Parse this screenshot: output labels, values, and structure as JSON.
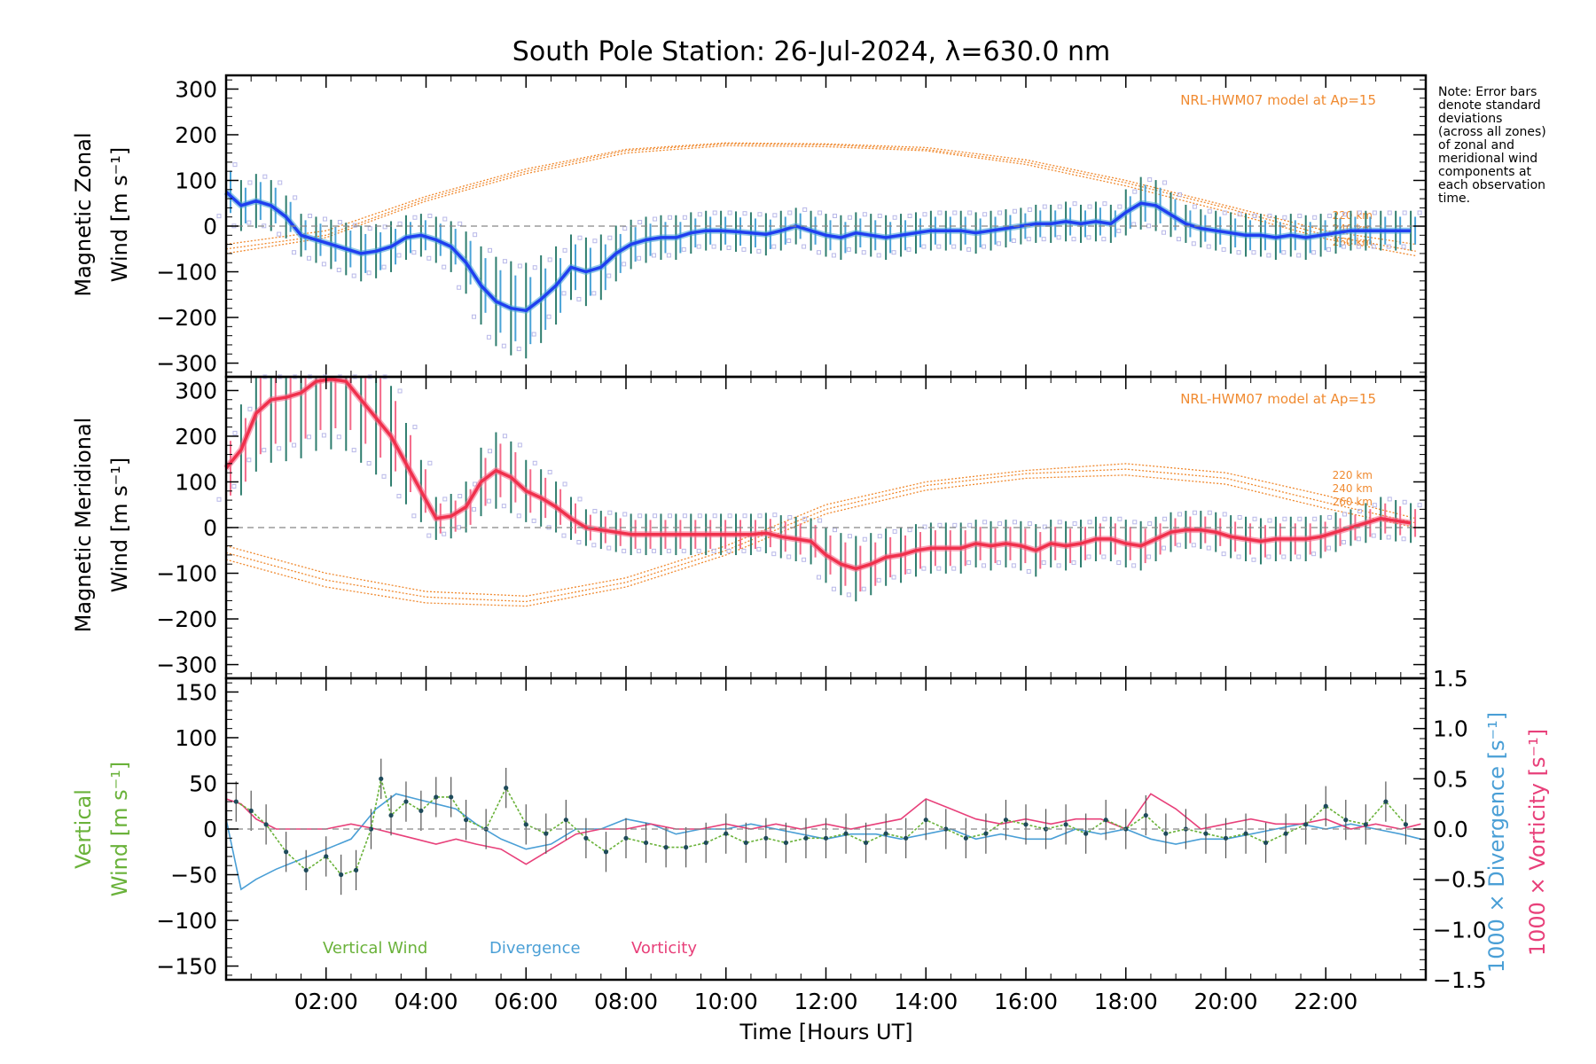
{
  "title": "South Pole Station: 26-Jul-2024, λ=630.0 nm",
  "note_lines": [
    "Note: Error bars",
    "denote standard",
    "deviations",
    "(across all zones)",
    "of zonal and",
    "meridional wind",
    "components at",
    "each observation",
    "time."
  ],
  "xaxis": {
    "label": "Time [Hours UT]",
    "range": [
      0,
      24
    ],
    "tick_values": [
      2,
      4,
      6,
      8,
      10,
      12,
      14,
      16,
      18,
      20,
      22
    ],
    "tick_labels": [
      "02:00",
      "04:00",
      "06:00",
      "08:00",
      "10:00",
      "12:00",
      "14:00",
      "16:00",
      "18:00",
      "20:00",
      "22:00"
    ]
  },
  "colors": {
    "zonal_line": "#1f3ff0",
    "zonal_light": "#4aa3d8",
    "meridional_line": "#f0304c",
    "meridional_light": "#f56a8a",
    "model": "#f08a30",
    "scatter": "#b8b8e8",
    "vertical": "#6ab23a",
    "divergence": "#4a9fd6",
    "vorticity": "#e8407a",
    "errbar": "#2e7d6e"
  },
  "chart_data": [
    {
      "type": "line",
      "panel": "zonal",
      "ylabel_line1": "Magnetic Zonal",
      "ylabel_line2": "Wind [m s⁻¹]",
      "ylim": [
        -330,
        330
      ],
      "ytick_values": [
        -300,
        -200,
        -100,
        0,
        100,
        200,
        300
      ],
      "ytick_labels": [
        "−300",
        "−200",
        "−100",
        "0",
        "100",
        "200",
        "300"
      ],
      "model_label": "NRL-HWM07 model at Ap=15",
      "model_alt_labels": [
        "220 km",
        "240 km",
        "260 km"
      ],
      "x": [
        0,
        0.3,
        0.6,
        0.9,
        1.2,
        1.5,
        1.8,
        2.1,
        2.4,
        2.7,
        3.0,
        3.3,
        3.6,
        3.9,
        4.2,
        4.5,
        4.8,
        5.1,
        5.4,
        5.7,
        6.0,
        6.3,
        6.6,
        6.9,
        7.2,
        7.5,
        7.8,
        8.1,
        8.4,
        8.7,
        9.0,
        9.3,
        9.6,
        9.9,
        10.2,
        10.5,
        10.8,
        11.1,
        11.4,
        11.7,
        12.0,
        12.3,
        12.6,
        12.9,
        13.2,
        13.5,
        13.8,
        14.1,
        14.4,
        14.7,
        15.0,
        15.3,
        15.6,
        15.9,
        16.2,
        16.5,
        16.8,
        17.1,
        17.4,
        17.7,
        18.0,
        18.3,
        18.6,
        18.9,
        19.2,
        19.5,
        19.8,
        20.1,
        20.4,
        20.7,
        21.0,
        21.3,
        21.6,
        21.9,
        22.2,
        22.5,
        22.8,
        23.1,
        23.4,
        23.7
      ],
      "values": [
        75,
        45,
        55,
        45,
        20,
        -20,
        -30,
        -40,
        -50,
        -60,
        -55,
        -45,
        -25,
        -20,
        -30,
        -45,
        -80,
        -130,
        -165,
        -180,
        -185,
        -160,
        -130,
        -90,
        -100,
        -90,
        -60,
        -40,
        -30,
        -25,
        -25,
        -15,
        -10,
        -10,
        -12,
        -15,
        -18,
        -10,
        0,
        -10,
        -20,
        -25,
        -15,
        -20,
        -25,
        -20,
        -15,
        -10,
        -10,
        -10,
        -15,
        -10,
        -5,
        0,
        5,
        5,
        10,
        5,
        10,
        5,
        30,
        50,
        45,
        25,
        5,
        -5,
        -10,
        -15,
        -20,
        -20,
        -25,
        -20,
        -25,
        -20,
        -15,
        -10,
        -10,
        -10,
        -10,
        -10
      ],
      "model_series": [
        {
          "name": "220 km",
          "x": [
            0,
            2,
            4,
            6,
            8,
            10,
            12,
            14,
            16,
            18,
            20,
            22,
            23.8
          ],
          "values": [
            -50,
            -20,
            60,
            120,
            165,
            180,
            178,
            168,
            140,
            95,
            40,
            -20,
            -55
          ]
        },
        {
          "name": "240 km",
          "x": [
            0,
            2,
            4,
            6,
            8,
            10,
            12,
            14,
            16,
            18,
            20,
            22,
            23.8
          ],
          "values": [
            -40,
            -10,
            65,
            125,
            168,
            182,
            180,
            172,
            145,
            100,
            45,
            -10,
            -40
          ]
        },
        {
          "name": "260 km",
          "x": [
            0,
            2,
            4,
            6,
            8,
            10,
            12,
            14,
            16,
            18,
            20,
            22,
            23.8
          ],
          "values": [
            -60,
            -25,
            55,
            115,
            160,
            176,
            174,
            165,
            135,
            88,
            32,
            -28,
            -65
          ]
        }
      ]
    },
    {
      "type": "line",
      "panel": "meridional",
      "ylabel_line1": "Magnetic Meridional",
      "ylabel_line2": "Wind [m s⁻¹]",
      "ylim": [
        -330,
        330
      ],
      "ytick_values": [
        -300,
        -200,
        -100,
        0,
        100,
        200,
        300
      ],
      "ytick_labels": [
        "−300",
        "−200",
        "−100",
        "0",
        "100",
        "200",
        "300"
      ],
      "model_label": "NRL-HWM07 model at Ap=15",
      "model_alt_labels": [
        "220 km",
        "240 km",
        "260 km"
      ],
      "x": [
        0,
        0.3,
        0.6,
        0.9,
        1.2,
        1.5,
        1.8,
        2.1,
        2.4,
        2.7,
        3.0,
        3.3,
        3.6,
        3.9,
        4.2,
        4.5,
        4.8,
        5.1,
        5.4,
        5.7,
        6.0,
        6.3,
        6.6,
        6.9,
        7.2,
        7.5,
        7.8,
        8.1,
        8.4,
        8.7,
        9.0,
        9.3,
        9.6,
        9.9,
        10.2,
        10.5,
        10.8,
        11.1,
        11.4,
        11.7,
        12.0,
        12.3,
        12.6,
        12.9,
        13.2,
        13.5,
        13.8,
        14.1,
        14.4,
        14.7,
        15.0,
        15.3,
        15.6,
        15.9,
        16.2,
        16.5,
        16.8,
        17.1,
        17.4,
        17.7,
        18.0,
        18.3,
        18.6,
        18.9,
        19.2,
        19.5,
        19.8,
        20.1,
        20.4,
        20.7,
        21.0,
        21.3,
        21.6,
        21.9,
        22.2,
        22.5,
        22.8,
        23.1,
        23.4,
        23.7
      ],
      "values": [
        130,
        170,
        250,
        280,
        285,
        295,
        320,
        325,
        320,
        280,
        240,
        200,
        140,
        80,
        20,
        25,
        45,
        100,
        125,
        110,
        80,
        65,
        45,
        20,
        0,
        -5,
        -10,
        -15,
        -15,
        -15,
        -15,
        -15,
        -15,
        -15,
        -15,
        -15,
        -12,
        -20,
        -25,
        -30,
        -60,
        -80,
        -90,
        -80,
        -65,
        -60,
        -50,
        -45,
        -45,
        -45,
        -35,
        -40,
        -35,
        -40,
        -50,
        -35,
        -40,
        -35,
        -25,
        -25,
        -35,
        -40,
        -25,
        -10,
        -5,
        -5,
        -10,
        -20,
        -25,
        -30,
        -25,
        -25,
        -25,
        -20,
        -10,
        0,
        10,
        20,
        15,
        10
      ],
      "model_series": [
        {
          "name": "220 km",
          "x": [
            0,
            2,
            4,
            6,
            8,
            10,
            12,
            14,
            16,
            18,
            20,
            22,
            23.8
          ],
          "values": [
            -40,
            -100,
            -140,
            -150,
            -110,
            -40,
            50,
            100,
            125,
            140,
            120,
            70,
            20
          ]
        },
        {
          "name": "240 km",
          "x": [
            0,
            2,
            4,
            6,
            8,
            10,
            12,
            14,
            16,
            18,
            20,
            22,
            23.8
          ],
          "values": [
            -55,
            -115,
            -152,
            -162,
            -120,
            -50,
            40,
            92,
            118,
            128,
            108,
            55,
            10
          ]
        },
        {
          "name": "260 km",
          "x": [
            0,
            2,
            4,
            6,
            8,
            10,
            12,
            14,
            16,
            18,
            20,
            22,
            23.8
          ],
          "values": [
            -70,
            -130,
            -165,
            -172,
            -130,
            -60,
            30,
            82,
            108,
            115,
            95,
            42,
            0
          ]
        }
      ]
    },
    {
      "type": "line",
      "panel": "vertical",
      "ylabel_left_line1": "Vertical",
      "ylabel_left_line2": "Wind [m s⁻¹]",
      "ylabel_right_div": "1000 × Divergence [s⁻¹]",
      "ylabel_right_vor": "1000 × Vorticity [s⁻¹]",
      "ylim": [
        -165,
        165
      ],
      "ytick_values": [
        -150,
        -100,
        -50,
        0,
        50,
        100,
        150
      ],
      "ytick_labels": [
        "−150",
        "−100",
        "−50",
        "0",
        "50",
        "100",
        "150"
      ],
      "y2lim": [
        -1.5,
        1.5
      ],
      "y2tick_values": [
        -1.5,
        -1.0,
        -0.5,
        0.0,
        0.5,
        1.0,
        1.5
      ],
      "y2tick_labels": [
        "−1.5",
        "−1.0",
        "−0.5",
        "0.0",
        "0.5",
        "1.0",
        "1.5"
      ],
      "legend": [
        "Vertical Wind",
        "Divergence",
        "Vorticity"
      ],
      "vertical_wind": {
        "x": [
          0.2,
          0.5,
          0.8,
          1.2,
          1.6,
          2.0,
          2.3,
          2.6,
          2.9,
          3.1,
          3.3,
          3.6,
          3.9,
          4.2,
          4.5,
          4.8,
          5.2,
          5.6,
          6.0,
          6.4,
          6.8,
          7.2,
          7.6,
          8.0,
          8.4,
          8.8,
          9.2,
          9.6,
          10.0,
          10.4,
          10.8,
          11.2,
          11.6,
          12.0,
          12.4,
          12.8,
          13.2,
          13.6,
          14.0,
          14.4,
          14.8,
          15.2,
          15.6,
          16.0,
          16.4,
          16.8,
          17.2,
          17.6,
          18.0,
          18.4,
          18.8,
          19.2,
          19.6,
          20.0,
          20.4,
          20.8,
          21.2,
          21.6,
          22.0,
          22.4,
          22.8,
          23.2,
          23.6
        ],
        "values": [
          30,
          20,
          5,
          -25,
          -45,
          -30,
          -50,
          -45,
          0,
          55,
          15,
          30,
          20,
          35,
          35,
          10,
          0,
          45,
          5,
          -5,
          10,
          -10,
          -25,
          -10,
          -15,
          -20,
          -20,
          -15,
          -5,
          -15,
          -10,
          -15,
          -10,
          -10,
          -5,
          -15,
          -5,
          -10,
          10,
          0,
          -10,
          -5,
          10,
          5,
          0,
          5,
          -5,
          10,
          0,
          15,
          -5,
          0,
          -5,
          -10,
          -5,
          -15,
          -5,
          5,
          25,
          10,
          5,
          30,
          5
        ]
      },
      "divergence": {
        "x": [
          0.0,
          0.3,
          0.6,
          1.0,
          1.5,
          2.0,
          2.5,
          3.0,
          3.4,
          3.8,
          4.2,
          4.6,
          5.0,
          5.5,
          6.0,
          6.5,
          7.0,
          7.5,
          8.0,
          8.5,
          9.0,
          9.5,
          10.0,
          10.5,
          11.0,
          11.5,
          12.0,
          12.5,
          13.0,
          13.5,
          14.0,
          14.5,
          15.0,
          15.5,
          16.0,
          16.5,
          17.0,
          17.5,
          18.0,
          18.5,
          19.0,
          19.5,
          20.0,
          20.5,
          21.0,
          21.5,
          22.0,
          22.5,
          23.0,
          23.5,
          23.9
        ],
        "values": [
          0.1,
          -0.6,
          -0.5,
          -0.4,
          -0.3,
          -0.2,
          -0.1,
          0.2,
          0.35,
          0.3,
          0.25,
          0.2,
          0.05,
          -0.1,
          -0.2,
          -0.15,
          0.0,
          0.0,
          0.1,
          0.05,
          -0.05,
          0.0,
          0.0,
          0.05,
          0.0,
          -0.05,
          -0.1,
          -0.05,
          -0.05,
          -0.1,
          -0.05,
          0.0,
          -0.1,
          -0.05,
          -0.1,
          -0.1,
          0.0,
          -0.05,
          0.0,
          -0.1,
          -0.15,
          -0.1,
          -0.1,
          -0.05,
          0.0,
          0.05,
          0.0,
          0.05,
          0.0,
          -0.05,
          -0.1
        ]
      },
      "vorticity": {
        "x": [
          0.0,
          0.3,
          0.6,
          1.0,
          1.5,
          2.0,
          2.5,
          3.0,
          3.4,
          3.8,
          4.2,
          4.6,
          5.0,
          5.5,
          6.0,
          6.5,
          7.0,
          7.5,
          8.0,
          8.5,
          9.0,
          9.5,
          10.0,
          10.5,
          11.0,
          11.5,
          12.0,
          12.5,
          13.0,
          13.5,
          14.0,
          14.5,
          15.0,
          15.5,
          16.0,
          16.5,
          17.0,
          17.5,
          18.0,
          18.5,
          19.0,
          19.5,
          20.0,
          20.5,
          21.0,
          21.5,
          22.0,
          22.5,
          23.0,
          23.5,
          23.9
        ],
        "values": [
          0.3,
          0.25,
          0.1,
          0.0,
          0.0,
          0.0,
          0.05,
          0.0,
          -0.05,
          -0.1,
          -0.15,
          -0.1,
          -0.15,
          -0.2,
          -0.35,
          -0.2,
          -0.05,
          0.0,
          0.0,
          0.05,
          0.0,
          0.0,
          0.05,
          0.0,
          0.05,
          0.0,
          0.05,
          0.0,
          0.05,
          0.1,
          0.3,
          0.2,
          0.1,
          0.05,
          0.1,
          0.05,
          0.1,
          0.1,
          0.0,
          0.35,
          0.2,
          0.0,
          0.05,
          0.1,
          0.05,
          0.05,
          0.1,
          0.0,
          0.05,
          0.0,
          0.05
        ]
      }
    }
  ]
}
